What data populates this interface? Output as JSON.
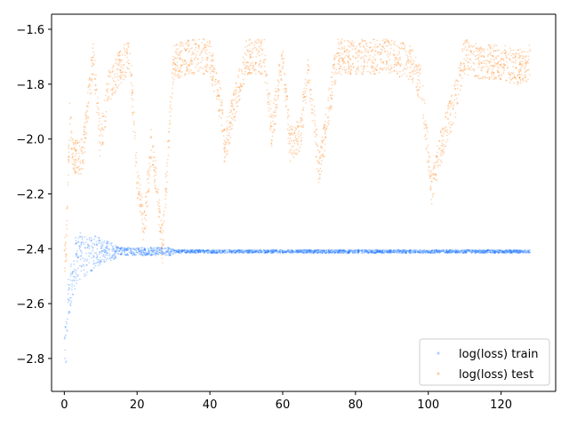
{
  "chart_data": {
    "type": "scatter",
    "title": "",
    "xlabel": "",
    "ylabel": "",
    "xlim": [
      -3.5,
      135
    ],
    "ylim": [
      -2.92,
      -1.545
    ],
    "x_ticks": [
      0,
      20,
      40,
      60,
      80,
      100,
      120
    ],
    "y_ticks": [
      -2.8,
      -2.6,
      -2.4,
      -2.2,
      -2.0,
      -1.8,
      -1.6
    ],
    "x_tick_labels": [
      "0",
      "20",
      "40",
      "60",
      "80",
      "100",
      "120"
    ],
    "y_tick_labels": [
      "−2.8",
      "−2.6",
      "−2.4",
      "−2.2",
      "−2.0",
      "−1.8",
      "−1.6"
    ],
    "grid": false,
    "legend_position": "lower-right",
    "legend": [
      "log(loss) train",
      "log(loss) test"
    ],
    "series": [
      {
        "name": "log(loss) train",
        "color": "#1f77ff",
        "description_points": [
          [
            0.5,
            -2.72
          ],
          [
            1,
            -2.62
          ],
          [
            1.5,
            -2.55
          ],
          [
            2,
            -2.5
          ],
          [
            3,
            -2.45
          ],
          [
            4,
            -2.43
          ],
          [
            5,
            -2.42
          ],
          [
            6,
            -2.44
          ],
          [
            8,
            -2.41
          ],
          [
            10,
            -2.41
          ],
          [
            12,
            -2.41
          ],
          [
            15,
            -2.41
          ],
          [
            20,
            -2.41
          ],
          [
            30,
            -2.41
          ],
          [
            40,
            -2.41
          ],
          [
            50,
            -2.41
          ],
          [
            60,
            -2.41
          ],
          [
            70,
            -2.41
          ],
          [
            80,
            -2.41
          ],
          [
            90,
            -2.41
          ],
          [
            100,
            -2.41
          ],
          [
            110,
            -2.41
          ],
          [
            120,
            -2.41
          ],
          [
            128,
            -2.41
          ]
        ]
      },
      {
        "name": "log(loss) test",
        "color": "#ff7f0e",
        "description_points": [
          [
            0.5,
            -2.42
          ],
          [
            1.5,
            -1.92
          ],
          [
            2.5,
            -2.07
          ],
          [
            5,
            -2.06
          ],
          [
            8,
            -1.7
          ],
          [
            10,
            -2.02
          ],
          [
            12,
            -1.82
          ],
          [
            15,
            -1.74
          ],
          [
            18,
            -1.7
          ],
          [
            20,
            -2.15
          ],
          [
            22,
            -2.33
          ],
          [
            24,
            -2.0
          ],
          [
            27,
            -2.39
          ],
          [
            30,
            -1.72
          ],
          [
            35,
            -1.7
          ],
          [
            40,
            -1.7
          ],
          [
            43,
            -1.88
          ],
          [
            44,
            -2.03
          ],
          [
            50,
            -1.7
          ],
          [
            55,
            -1.7
          ],
          [
            57,
            -1.98
          ],
          [
            60,
            -1.7
          ],
          [
            62,
            -2.02
          ],
          [
            65,
            -1.98
          ],
          [
            67,
            -1.72
          ],
          [
            70,
            -2.12
          ],
          [
            73,
            -1.85
          ],
          [
            75,
            -1.7
          ],
          [
            80,
            -1.7
          ],
          [
            85,
            -1.7
          ],
          [
            90,
            -1.7
          ],
          [
            95,
            -1.72
          ],
          [
            98,
            -1.8
          ],
          [
            101,
            -2.18
          ],
          [
            104,
            -2.0
          ],
          [
            107,
            -1.88
          ],
          [
            110,
            -1.7
          ],
          [
            115,
            -1.72
          ],
          [
            120,
            -1.72
          ],
          [
            125,
            -1.74
          ],
          [
            128,
            -1.72
          ]
        ]
      }
    ]
  }
}
